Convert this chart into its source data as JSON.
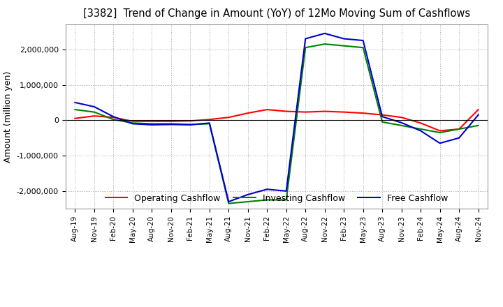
{
  "title": "[3382]  Trend of Change in Amount (YoY) of 12Mo Moving Sum of Cashflows",
  "ylabel": "Amount (million yen)",
  "x_labels": [
    "Aug-19",
    "Nov-19",
    "Feb-20",
    "May-20",
    "Aug-20",
    "Nov-20",
    "Feb-21",
    "May-21",
    "Aug-21",
    "Nov-21",
    "Feb-22",
    "May-22",
    "Aug-22",
    "Nov-22",
    "Feb-23",
    "May-23",
    "Aug-23",
    "Nov-23",
    "Feb-24",
    "May-24",
    "Aug-24",
    "Nov-24"
  ],
  "operating_cashflow": [
    50000,
    120000,
    80000,
    -30000,
    -30000,
    -30000,
    -20000,
    20000,
    80000,
    200000,
    300000,
    250000,
    230000,
    250000,
    230000,
    200000,
    150000,
    80000,
    -80000,
    -300000,
    -250000,
    300000
  ],
  "investing_cashflow": [
    300000,
    230000,
    20000,
    -80000,
    -100000,
    -100000,
    -120000,
    -100000,
    -2350000,
    -2300000,
    -2250000,
    -2250000,
    2050000,
    2150000,
    2100000,
    2050000,
    -50000,
    -150000,
    -250000,
    -350000,
    -250000,
    -150000
  ],
  "free_cashflow": [
    500000,
    380000,
    100000,
    -100000,
    -130000,
    -120000,
    -130000,
    -80000,
    -2300000,
    -2100000,
    -1950000,
    -2000000,
    2300000,
    2450000,
    2300000,
    2250000,
    100000,
    -70000,
    -300000,
    -650000,
    -500000,
    150000
  ],
  "operating_color": "#ff0000",
  "investing_color": "#008000",
  "free_color": "#0000cd",
  "ylim": [
    -2500000,
    2700000
  ],
  "yticks": [
    -2000000,
    -1000000,
    0,
    1000000,
    2000000
  ],
  "background_color": "#ffffff",
  "grid_color": "#aaaaaa"
}
